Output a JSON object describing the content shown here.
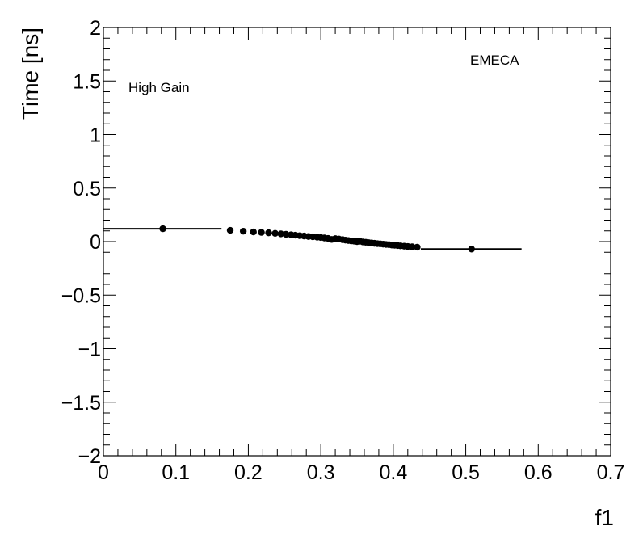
{
  "chart_data": {
    "type": "scatter",
    "xlabel": "f1",
    "ylabel": "Time [ns]",
    "xlim": [
      0,
      0.7
    ],
    "ylim": [
      -2,
      2
    ],
    "xticks": [
      0,
      0.1,
      0.2,
      0.3,
      0.4,
      0.5,
      0.6,
      0.7
    ],
    "yticks": [
      -2,
      -1.5,
      -1,
      -0.5,
      0,
      0.5,
      1,
      1.5,
      2
    ],
    "xtick_labels": [
      "0",
      "0.1",
      "0.2",
      "0.3",
      "0.4",
      "0.5",
      "0.6",
      "0.7"
    ],
    "ytick_labels": [
      "−2",
      "−1.5",
      "−1",
      "−0.5",
      "0",
      "0.5",
      "1",
      "1.5",
      "2"
    ],
    "annotations": [
      {
        "id": "gain",
        "text": "High Gain"
      },
      {
        "id": "region",
        "text": "EMECA"
      }
    ],
    "series": [
      {
        "points": [
          {
            "x": 0.082,
            "y": 0.12,
            "xlo": 0.0,
            "xhi": 0.163
          },
          {
            "x": 0.175,
            "y": 0.105
          },
          {
            "x": 0.193,
            "y": 0.097
          },
          {
            "x": 0.207,
            "y": 0.09
          },
          {
            "x": 0.218,
            "y": 0.086
          },
          {
            "x": 0.228,
            "y": 0.082
          },
          {
            "x": 0.237,
            "y": 0.077
          },
          {
            "x": 0.245,
            "y": 0.072
          },
          {
            "x": 0.252,
            "y": 0.068
          },
          {
            "x": 0.259,
            "y": 0.064
          },
          {
            "x": 0.265,
            "y": 0.06
          },
          {
            "x": 0.271,
            "y": 0.055
          },
          {
            "x": 0.277,
            "y": 0.052
          },
          {
            "x": 0.283,
            "y": 0.048
          },
          {
            "x": 0.289,
            "y": 0.045
          },
          {
            "x": 0.295,
            "y": 0.041
          },
          {
            "x": 0.3,
            "y": 0.038
          },
          {
            "x": 0.305,
            "y": 0.034
          },
          {
            "x": 0.31,
            "y": 0.03
          },
          {
            "x": 0.315,
            "y": 0.02
          },
          {
            "x": 0.32,
            "y": 0.028
          },
          {
            "x": 0.325,
            "y": 0.024
          },
          {
            "x": 0.33,
            "y": 0.018
          },
          {
            "x": 0.334,
            "y": 0.014
          },
          {
            "x": 0.338,
            "y": 0.01
          },
          {
            "x": 0.342,
            "y": 0.006
          },
          {
            "x": 0.346,
            "y": 0.004
          },
          {
            "x": 0.35,
            "y": 0.0
          },
          {
            "x": 0.354,
            "y": 0.003
          },
          {
            "x": 0.358,
            "y": -0.003
          },
          {
            "x": 0.362,
            "y": -0.006
          },
          {
            "x": 0.366,
            "y": -0.01
          },
          {
            "x": 0.37,
            "y": -0.013
          },
          {
            "x": 0.374,
            "y": -0.016
          },
          {
            "x": 0.378,
            "y": -0.019
          },
          {
            "x": 0.382,
            "y": -0.021
          },
          {
            "x": 0.386,
            "y": -0.024
          },
          {
            "x": 0.39,
            "y": -0.027
          },
          {
            "x": 0.394,
            "y": -0.029
          },
          {
            "x": 0.398,
            "y": -0.032
          },
          {
            "x": 0.402,
            "y": -0.034
          },
          {
            "x": 0.406,
            "y": -0.037
          },
          {
            "x": 0.41,
            "y": -0.04
          },
          {
            "x": 0.415,
            "y": -0.043
          },
          {
            "x": 0.42,
            "y": -0.046
          },
          {
            "x": 0.426,
            "y": -0.049
          },
          {
            "x": 0.433,
            "y": -0.052
          },
          {
            "x": 0.508,
            "y": -0.07,
            "xlo": 0.438,
            "xhi": 0.577
          }
        ]
      }
    ],
    "grid": false,
    "marker_color": "#000000",
    "marker_shape": "filled-circle",
    "error_bars": "horizontal"
  }
}
